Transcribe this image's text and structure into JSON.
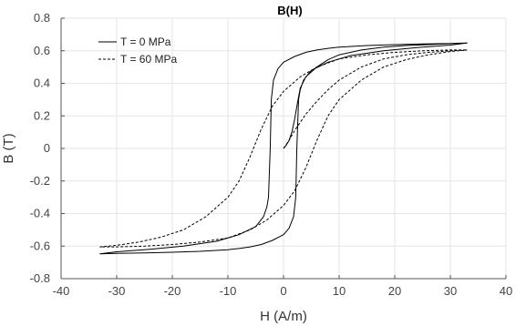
{
  "chart_data": {
    "type": "line",
    "title": "B(H)",
    "xlabel": "H (A/m)",
    "ylabel": "B (T)",
    "xlim": [
      -40,
      40
    ],
    "ylim": [
      -0.8,
      0.8
    ],
    "x_ticks": [
      -40,
      -30,
      -20,
      -10,
      0,
      10,
      20,
      30,
      40
    ],
    "x_tick_labels": [
      "-40",
      "-30",
      "-20",
      "-10",
      "0",
      "10",
      "20",
      "30",
      "40"
    ],
    "y_ticks": [
      -0.8,
      -0.6,
      -0.4,
      -0.2,
      0,
      0.2,
      0.4,
      0.6,
      0.8
    ],
    "y_tick_labels": [
      "-0.8",
      "-0.6",
      "-0.4",
      "-0.2",
      "0",
      "0.2",
      "0.4",
      "0.6",
      "0.8"
    ],
    "grid": true,
    "legend_position": "top-left",
    "series": [
      {
        "name": "T = 0 MPa",
        "line_style": "solid",
        "color": "#000000",
        "x": [
          0,
          0.5,
          1,
          1.5,
          2,
          2.5,
          3,
          4,
          6,
          8,
          10,
          14,
          18,
          22,
          26,
          30,
          33,
          30,
          25,
          20,
          15,
          10,
          8,
          6,
          4,
          2,
          0,
          -1,
          -1.8,
          -2.2,
          -2.4,
          -2.7,
          -3,
          -3.6,
          -5,
          -8,
          -12,
          -18,
          -24,
          -30,
          -33,
          -30,
          -25,
          -20,
          -15,
          -10,
          -8,
          -6,
          -4,
          -2,
          0,
          1,
          1.8,
          2.2,
          2.4,
          2.7,
          3,
          3.6,
          5,
          8,
          12,
          18,
          24,
          30,
          33
        ],
        "y": [
          0,
          0.02,
          0.05,
          0.1,
          0.18,
          0.28,
          0.37,
          0.44,
          0.5,
          0.545,
          0.575,
          0.605,
          0.622,
          0.632,
          0.638,
          0.644,
          0.648,
          0.645,
          0.642,
          0.638,
          0.632,
          0.622,
          0.615,
          0.605,
          0.59,
          0.565,
          0.53,
          0.49,
          0.42,
          0.3,
          0.0,
          -0.3,
          -0.36,
          -0.42,
          -0.48,
          -0.53,
          -0.57,
          -0.6,
          -0.62,
          -0.635,
          -0.648,
          -0.645,
          -0.642,
          -0.638,
          -0.632,
          -0.622,
          -0.615,
          -0.605,
          -0.59,
          -0.565,
          -0.53,
          -0.49,
          -0.42,
          -0.3,
          0.0,
          0.3,
          0.36,
          0.42,
          0.48,
          0.53,
          0.57,
          0.6,
          0.62,
          0.635,
          0.648
        ]
      },
      {
        "name": "T = 60 MPa",
        "line_style": "dashed",
        "color": "#000000",
        "x": [
          0,
          1,
          2,
          3,
          4,
          6,
          8,
          10,
          14,
          18,
          22,
          26,
          30,
          33,
          30,
          25,
          20,
          15,
          10,
          6,
          3,
          0,
          -2,
          -4,
          -6,
          -8,
          -10,
          -14,
          -18,
          -22,
          -26,
          -30,
          -33,
          -30,
          -25,
          -20,
          -15,
          -10,
          -6,
          -3,
          0,
          2,
          4,
          6,
          8,
          10,
          14,
          18,
          22,
          26,
          30,
          33
        ],
        "y": [
          0,
          0.05,
          0.11,
          0.16,
          0.21,
          0.29,
          0.36,
          0.42,
          0.5,
          0.55,
          0.575,
          0.59,
          0.6,
          0.605,
          0.605,
          0.6,
          0.59,
          0.575,
          0.55,
          0.5,
          0.44,
          0.35,
          0.26,
          0.12,
          -0.05,
          -0.2,
          -0.3,
          -0.42,
          -0.5,
          -0.545,
          -0.575,
          -0.595,
          -0.605,
          -0.605,
          -0.6,
          -0.59,
          -0.575,
          -0.55,
          -0.5,
          -0.44,
          -0.35,
          -0.26,
          -0.12,
          0.05,
          0.2,
          0.3,
          0.42,
          0.5,
          0.545,
          0.575,
          0.595,
          0.605
        ]
      }
    ]
  }
}
